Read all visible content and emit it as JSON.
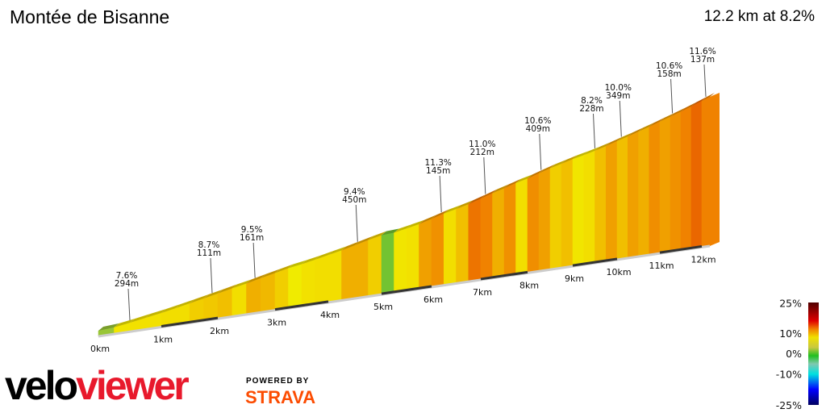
{
  "header": {
    "title": "Montée de Bisanne",
    "summary": "12.2 km at 8.2%"
  },
  "chart_data": {
    "type": "area",
    "title": "Montée de Bisanne",
    "distance_km": 12.2,
    "avg_gradient_pct": 8.2,
    "segment_length_km": 0.25,
    "segment_gradients_pct": [
      3,
      7,
      7.5,
      7.6,
      8,
      8,
      8.5,
      8.7,
      9,
      8,
      9.5,
      9.2,
      8.5,
      6,
      7.5,
      8,
      8,
      9.5,
      9.5,
      8.5,
      2,
      7,
      7.5,
      10,
      10.5,
      8,
      9,
      11.3,
      11,
      9.5,
      10.5,
      8,
      10.6,
      10,
      8.5,
      9,
      7,
      8,
      9,
      10,
      9,
      10,
      9.5,
      10.6,
      10,
      10.5,
      11,
      11.6,
      11
    ],
    "x_ticks": [
      "0km",
      "1km",
      "2km",
      "3km",
      "4km",
      "5km",
      "6km",
      "7km",
      "8km",
      "9km",
      "10km",
      "11km",
      "12km"
    ],
    "annotations": [
      {
        "km": 0.5,
        "gradient": "7.6%",
        "length": "294m"
      },
      {
        "km": 1.9,
        "gradient": "8.7%",
        "length": "111m"
      },
      {
        "km": 2.65,
        "gradient": "9.5%",
        "length": "161m"
      },
      {
        "km": 4.55,
        "gradient": "9.4%",
        "length": "450m"
      },
      {
        "km": 6.2,
        "gradient": "11.3%",
        "length": "145m"
      },
      {
        "km": 7.1,
        "gradient": "11.0%",
        "length": "212m"
      },
      {
        "km": 8.3,
        "gradient": "10.6%",
        "length": "409m"
      },
      {
        "km": 9.5,
        "gradient": "8.2%",
        "length": "228m"
      },
      {
        "km": 10.1,
        "gradient": "10.0%",
        "length": "349m"
      },
      {
        "km": 11.3,
        "gradient": "10.6%",
        "length": "158m"
      },
      {
        "km": 12.1,
        "gradient": "11.6%",
        "length": "137m"
      }
    ],
    "legend": {
      "labels": [
        "25%",
        "10%",
        "0%",
        "-10%",
        "-25%"
      ],
      "values": [
        25,
        10,
        0,
        -10,
        -25
      ]
    }
  },
  "branding": {
    "logo_a": "velo",
    "logo_b": "viewer",
    "powered": "POWERED BY",
    "strava": "STRAVA"
  }
}
